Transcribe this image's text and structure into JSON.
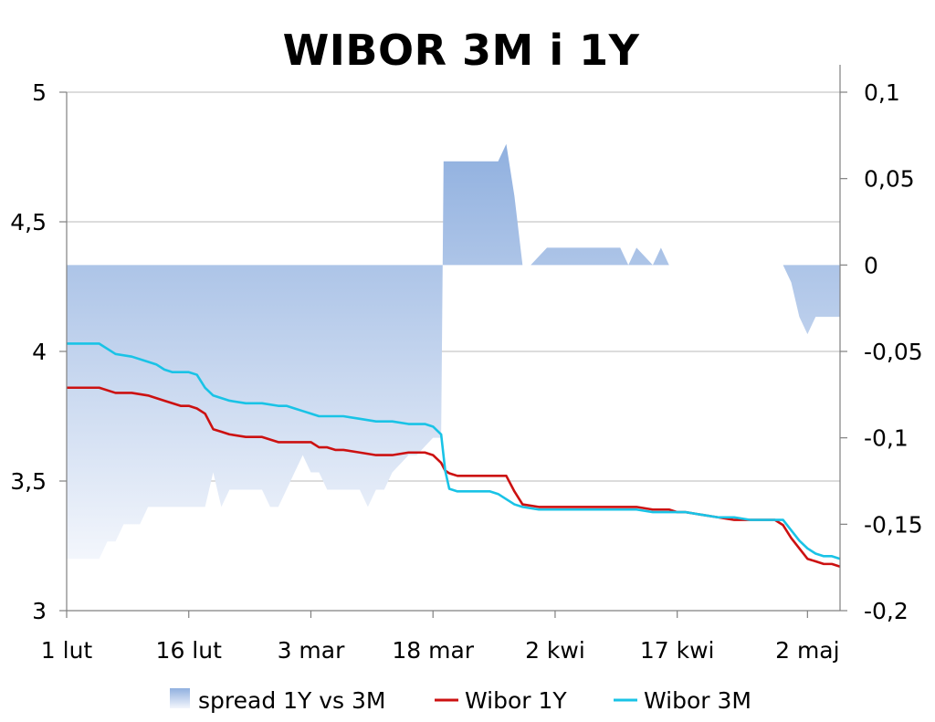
{
  "chart_data": {
    "type": "line",
    "title": "WIBOR 3M i 1Y",
    "xlabel": "",
    "ylabel": "",
    "x_ticks": [
      "1 lut",
      "16 lut",
      "3 mar",
      "18 mar",
      "2 kwi",
      "17 kwi",
      "2 maj"
    ],
    "x_tick_days": [
      0,
      15,
      30,
      45,
      60,
      75,
      91
    ],
    "x_range": [
      0,
      95
    ],
    "y_left_ticks": [
      "3",
      "3,5",
      "4",
      "4,5",
      "5"
    ],
    "y_left_tick_values": [
      3,
      3.5,
      4,
      4.5,
      5
    ],
    "ylim_left": [
      3,
      5
    ],
    "y_right_ticks": [
      "-0,2",
      "-0,15",
      "-0,1",
      "-0,05",
      "0",
      "0,05",
      "0,1"
    ],
    "y_right_tick_values": [
      -0.2,
      -0.15,
      -0.1,
      -0.05,
      0,
      0.05,
      0.1
    ],
    "ylim_right": [
      -0.2,
      0.1
    ],
    "grid": true,
    "legend_position": "bottom",
    "colors": {
      "wibor_1y": "#cc1111",
      "wibor_3m": "#19c3e6",
      "spread_top": "#90b0df",
      "spread_bottom": "#f3f6fc",
      "grid": "#b8b8b8"
    },
    "series": [
      {
        "name": "spread 1Y vs 3M",
        "kind": "area",
        "axis": "right",
        "x": [
          0,
          4,
          5,
          6,
          7,
          8,
          9,
          10,
          11,
          12,
          13,
          14,
          15,
          16,
          17,
          18,
          18.5,
          19,
          20,
          21,
          22,
          23,
          24,
          25,
          26,
          27,
          28,
          29,
          30,
          31,
          32,
          33,
          34,
          35,
          36,
          37,
          38,
          39,
          40,
          41,
          42,
          43,
          44,
          45,
          46,
          46.3,
          47,
          48,
          49,
          50,
          51,
          52,
          53,
          54,
          55,
          56,
          57,
          58,
          59,
          60,
          61,
          62,
          63,
          64,
          65,
          66,
          67,
          68,
          69,
          70,
          71,
          72,
          73,
          74,
          75,
          76,
          77,
          78,
          79,
          80,
          81,
          82,
          83,
          84,
          85,
          86,
          87,
          88,
          89,
          90,
          91,
          92,
          93,
          94,
          95
        ],
        "y": [
          -0.17,
          -0.17,
          -0.16,
          -0.16,
          -0.15,
          -0.15,
          -0.15,
          -0.14,
          -0.14,
          -0.14,
          -0.14,
          -0.14,
          -0.14,
          -0.14,
          -0.14,
          -0.12,
          -0.13,
          -0.14,
          -0.13,
          -0.13,
          -0.13,
          -0.13,
          -0.13,
          -0.14,
          -0.14,
          -0.13,
          -0.12,
          -0.11,
          -0.12,
          -0.12,
          -0.13,
          -0.13,
          -0.13,
          -0.13,
          -0.13,
          -0.14,
          -0.13,
          -0.13,
          -0.12,
          -0.115,
          -0.11,
          -0.11,
          -0.105,
          -0.1,
          -0.1,
          0.06,
          0.06,
          0.06,
          0.06,
          0.06,
          0.06,
          0.06,
          0.06,
          0.07,
          0.04,
          0.0,
          0.0,
          0.005,
          0.01,
          0.01,
          0.01,
          0.01,
          0.01,
          0.01,
          0.01,
          0.01,
          0.01,
          0.01,
          0.0,
          0.01,
          0.005,
          0.0,
          0.01,
          0.0,
          0.0,
          0.0,
          0.0,
          0.0,
          0.0,
          0.0,
          0.0,
          0.0,
          0.0,
          0.0,
          0.0,
          0.0,
          0.0,
          0.0,
          -0.01,
          -0.03,
          -0.04,
          -0.03,
          -0.03,
          -0.03,
          -0.03
        ]
      },
      {
        "name": "Wibor 1Y",
        "kind": "line",
        "axis": "left",
        "x": [
          0,
          4,
          6,
          8,
          10,
          12,
          14,
          15,
          16,
          17,
          18,
          19,
          20,
          22,
          24,
          26,
          27,
          28,
          30,
          31,
          32,
          33,
          34,
          36,
          38,
          40,
          42,
          44,
          45,
          46,
          46.5,
          47,
          48,
          50,
          52,
          54,
          55,
          56,
          58,
          60,
          62,
          64,
          66,
          68,
          70,
          72,
          74,
          75,
          76,
          78,
          80,
          82,
          84,
          86,
          87,
          88,
          89,
          90,
          91,
          92,
          93,
          94,
          95
        ],
        "y": [
          3.86,
          3.86,
          3.84,
          3.84,
          3.83,
          3.81,
          3.79,
          3.79,
          3.78,
          3.76,
          3.7,
          3.69,
          3.68,
          3.67,
          3.67,
          3.65,
          3.65,
          3.65,
          3.65,
          3.63,
          3.63,
          3.62,
          3.62,
          3.61,
          3.6,
          3.6,
          3.61,
          3.61,
          3.6,
          3.57,
          3.54,
          3.53,
          3.52,
          3.52,
          3.52,
          3.52,
          3.46,
          3.41,
          3.4,
          3.4,
          3.4,
          3.4,
          3.4,
          3.4,
          3.4,
          3.39,
          3.39,
          3.38,
          3.38,
          3.37,
          3.36,
          3.35,
          3.35,
          3.35,
          3.35,
          3.33,
          3.28,
          3.24,
          3.2,
          3.19,
          3.18,
          3.18,
          3.17
        ]
      },
      {
        "name": "Wibor 3M",
        "kind": "line",
        "axis": "left",
        "x": [
          0,
          4,
          6,
          8,
          10,
          11,
          12,
          13,
          14,
          15,
          16,
          17,
          18,
          19,
          20,
          22,
          24,
          26,
          27,
          28,
          29,
          30,
          31,
          32,
          34,
          36,
          38,
          40,
          42,
          44,
          45,
          46,
          46.5,
          47,
          48,
          50,
          52,
          53,
          55,
          56,
          58,
          60,
          62,
          64,
          66,
          68,
          70,
          72,
          74,
          76,
          78,
          80,
          82,
          84,
          86,
          87,
          88,
          89,
          90,
          91,
          92,
          93,
          94,
          95
        ],
        "y": [
          4.03,
          4.03,
          3.99,
          3.98,
          3.96,
          3.95,
          3.93,
          3.92,
          3.92,
          3.92,
          3.91,
          3.86,
          3.83,
          3.82,
          3.81,
          3.8,
          3.8,
          3.79,
          3.79,
          3.78,
          3.77,
          3.76,
          3.75,
          3.75,
          3.75,
          3.74,
          3.73,
          3.73,
          3.72,
          3.72,
          3.71,
          3.68,
          3.54,
          3.47,
          3.46,
          3.46,
          3.46,
          3.45,
          3.41,
          3.4,
          3.39,
          3.39,
          3.39,
          3.39,
          3.39,
          3.39,
          3.39,
          3.38,
          3.38,
          3.38,
          3.37,
          3.36,
          3.36,
          3.35,
          3.35,
          3.35,
          3.35,
          3.31,
          3.27,
          3.24,
          3.22,
          3.21,
          3.21,
          3.2
        ]
      }
    ]
  }
}
